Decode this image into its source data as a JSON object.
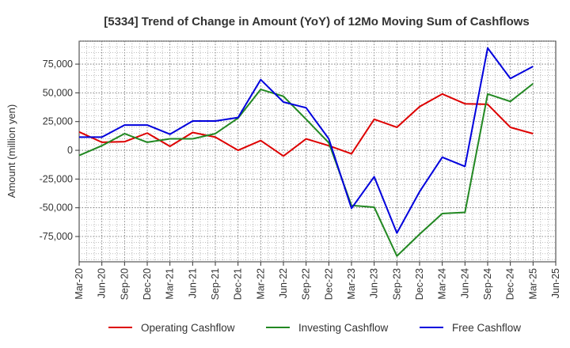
{
  "chart_data": {
    "type": "line",
    "title": "[5334]  Trend of Change in Amount (YoY) of 12Mo Moving Sum of Cashflows",
    "xlabel": "",
    "ylabel": "Amount (million yen)",
    "ylim": [
      -97000,
      95000
    ],
    "yticks": [
      75000,
      50000,
      25000,
      0,
      -25000,
      -50000,
      -75000
    ],
    "ytick_labels": [
      "75,000",
      "50,000",
      "25,000",
      "0",
      "-25,000",
      "-50,000",
      "-75,000"
    ],
    "categories": [
      "Mar-20",
      "Jun-20",
      "Sep-20",
      "Dec-20",
      "Mar-21",
      "Jun-21",
      "Sep-21",
      "Dec-21",
      "Mar-22",
      "Jun-22",
      "Sep-22",
      "Dec-22",
      "Mar-23",
      "Jun-23",
      "Sep-23",
      "Dec-23",
      "Mar-24",
      "Jun-24",
      "Sep-24",
      "Dec-24",
      "Mar-25",
      "Jun-25"
    ],
    "grid": true,
    "legend_position": "bottom",
    "series": [
      {
        "name": "Operating Cashflow",
        "color": "#dd0000",
        "values": [
          16000,
          7000,
          7500,
          15000,
          3500,
          15500,
          11500,
          0,
          8500,
          -5000,
          10000,
          4000,
          -3000,
          27000,
          20000,
          38000,
          49000,
          40500,
          40000,
          20000,
          14500,
          null
        ]
      },
      {
        "name": "Investing Cashflow",
        "color": "#228822",
        "values": [
          -4500,
          4000,
          14500,
          7000,
          10000,
          10000,
          14500,
          28000,
          53000,
          47000,
          27000,
          6500,
          -48000,
          -49500,
          -92000,
          -73000,
          -55000,
          -54000,
          49000,
          42500,
          58000,
          null
        ]
      },
      {
        "name": "Free Cashflow",
        "color": "#0000dd",
        "values": [
          11500,
          11500,
          22000,
          22000,
          14000,
          25500,
          25500,
          28500,
          61500,
          42000,
          37000,
          10000,
          -50500,
          -23000,
          -72000,
          -36000,
          -6000,
          -14000,
          89000,
          62500,
          73000,
          null
        ]
      }
    ]
  }
}
